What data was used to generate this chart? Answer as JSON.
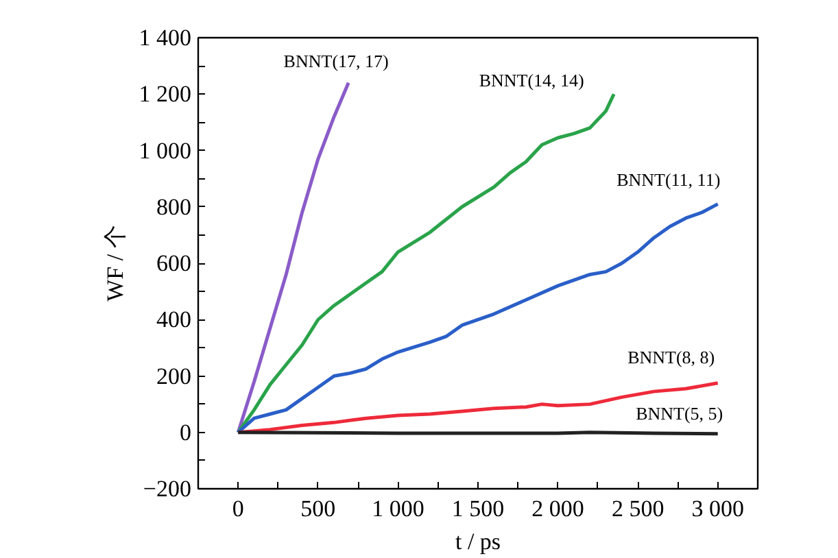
{
  "chart_data": {
    "type": "line",
    "xlabel": "t / ps",
    "ylabel": "WF / 个",
    "x": [
      0,
      100,
      200,
      300,
      400,
      500,
      600,
      700,
      800,
      900,
      1000,
      1200,
      1300,
      1400,
      1600,
      1800,
      2000,
      2200,
      2300,
      2400,
      2500,
      2600,
      2700,
      2800,
      2900,
      3000
    ],
    "series": [
      {
        "name": "BNNT(17, 17)",
        "color": "#8a5cc8",
        "x": [
          0,
          100,
          200,
          300,
          400,
          500,
          600,
          690
        ],
        "values": [
          0,
          180,
          370,
          560,
          780,
          970,
          1120,
          1240
        ]
      },
      {
        "name": "BNNT(14, 14)",
        "color": "#2aa34a",
        "x": [
          0,
          100,
          200,
          300,
          400,
          500,
          600,
          700,
          800,
          900,
          1000,
          1200,
          1400,
          1600,
          1700,
          1800,
          1900,
          2000,
          2100,
          2200,
          2300,
          2350
        ],
        "values": [
          0,
          80,
          170,
          240,
          310,
          400,
          450,
          490,
          530,
          570,
          640,
          710,
          800,
          870,
          920,
          960,
          1020,
          1045,
          1060,
          1080,
          1140,
          1200
        ]
      },
      {
        "name": "BNNT(11, 11)",
        "color": "#2a5fc8",
        "values": [
          0,
          50,
          65,
          80,
          120,
          160,
          200,
          210,
          225,
          260,
          285,
          320,
          340,
          380,
          420,
          470,
          520,
          560,
          570,
          600,
          640,
          690,
          730,
          760,
          780,
          810
        ]
      },
      {
        "name": "BNNT(8, 8)",
        "color": "#ee2a3a",
        "x": [
          0,
          200,
          400,
          600,
          800,
          1000,
          1200,
          1400,
          1600,
          1800,
          1900,
          2000,
          2200,
          2400,
          2600,
          2800,
          3000
        ],
        "values": [
          0,
          10,
          25,
          35,
          50,
          60,
          65,
          75,
          85,
          90,
          100,
          95,
          100,
          125,
          145,
          155,
          175
        ]
      },
      {
        "name": "BNNT(5, 5)",
        "color": "#222222",
        "x": [
          0,
          1000,
          2000,
          2200,
          2600,
          3000
        ],
        "values": [
          0,
          -3,
          -3,
          0,
          -3,
          -5
        ]
      }
    ],
    "xlim": [
      -250,
      3250
    ],
    "ylim": [
      -200,
      1400
    ],
    "xticks": [
      0,
      {
        "value": 250,
        "label": null
      },
      500,
      {
        "value": 750,
        "label": null
      },
      {
        "value": 1000,
        "label": "1 000"
      },
      {
        "value": 1250,
        "label": null
      },
      {
        "value": 1500,
        "label": "1 500"
      },
      {
        "value": 1750,
        "label": null
      },
      {
        "value": 2000,
        "label": "2 000"
      },
      {
        "value": 2250,
        "label": null
      },
      {
        "value": 2500,
        "label": "2 500"
      },
      {
        "value": 2750,
        "label": null
      },
      {
        "value": 3000,
        "label": "3 000"
      }
    ],
    "yticks": [
      {
        "value": -200,
        "label": "−200"
      },
      {
        "value": -100,
        "label": null
      },
      0,
      {
        "value": 100,
        "label": null
      },
      200,
      {
        "value": 300,
        "label": null
      },
      400,
      {
        "value": 500,
        "label": null
      },
      600,
      {
        "value": 700,
        "label": null
      },
      800,
      {
        "value": 900,
        "label": null
      },
      {
        "value": 1000,
        "label": "1 000"
      },
      {
        "value": 1100,
        "label": null
      },
      {
        "value": 1200,
        "label": "1 200"
      },
      {
        "value": 1300,
        "label": null
      },
      {
        "value": 1400,
        "label": "1 400"
      }
    ],
    "grid": false,
    "legend": false,
    "line_style": "solid"
  }
}
